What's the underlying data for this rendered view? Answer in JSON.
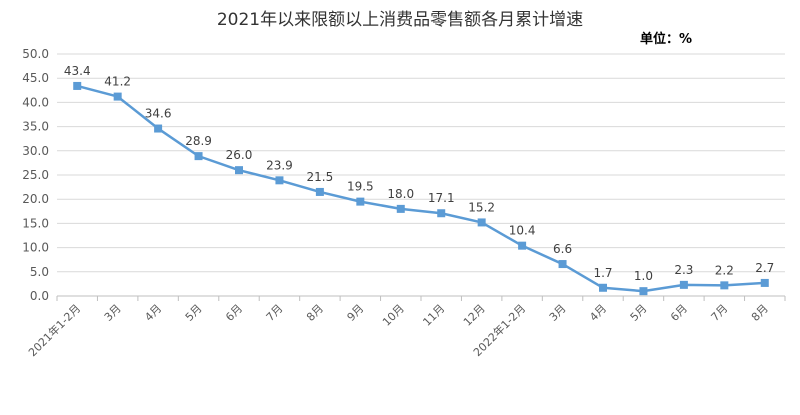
{
  "chart_data": {
    "type": "line",
    "title": "2021年以来限额以上消费品零售额各月累计增速",
    "unit_label": "单位：%",
    "categories": [
      "2021年1-2月",
      "3月",
      "4月",
      "5月",
      "6月",
      "7月",
      "8月",
      "9月",
      "10月",
      "11月",
      "12月",
      "2022年1-2月",
      "3月",
      "4月",
      "5月",
      "6月",
      "7月",
      "8月"
    ],
    "series": [
      {
        "values": [
          43.4,
          41.2,
          34.6,
          28.9,
          26.0,
          23.9,
          21.5,
          19.5,
          18.0,
          17.1,
          15.2,
          10.4,
          6.6,
          1.7,
          1.0,
          2.3,
          2.2,
          2.7
        ]
      }
    ],
    "data_labels": [
      "43.4",
      "41.2",
      "34.6",
      "28.9",
      "26.0",
      "23.9",
      "21.5",
      "19.5",
      "18.0",
      "17.1",
      "15.2",
      "10.4",
      "6.6",
      "1.7",
      "1.0",
      "2.3",
      "2.2",
      "2.7"
    ],
    "yticks": [
      "0.0",
      "5.0",
      "10.0",
      "15.0",
      "20.0",
      "25.0",
      "30.0",
      "35.0",
      "40.0",
      "45.0",
      "50.0"
    ],
    "ylim": [
      0,
      50
    ],
    "grid": true,
    "colors": {
      "line": "#5B9BD5",
      "grid": "#D9D9D9",
      "axis": "#BFBFBF"
    }
  }
}
